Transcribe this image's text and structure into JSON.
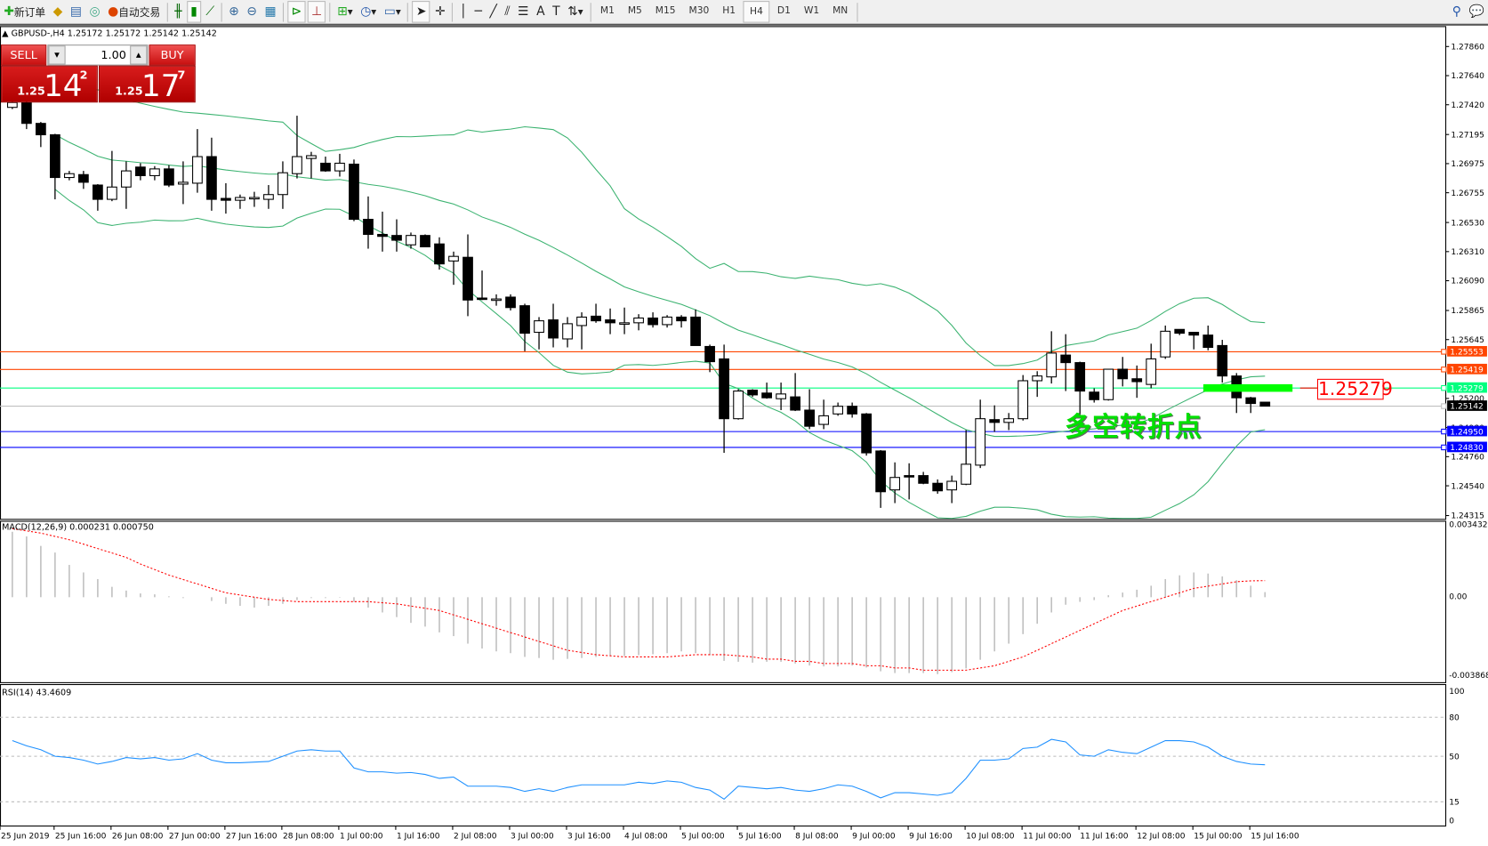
{
  "toolbar": {
    "new_order": "新订单",
    "auto_trading": "自动交易",
    "icons": [
      "new-order-icon",
      "market-watch-icon",
      "data-window-icon",
      "navigator-icon",
      "auto-trading-icon",
      "bar-chart-icon",
      "candlestick-icon",
      "line-chart-icon",
      "zoom-in-icon",
      "zoom-out-icon",
      "tile-windows-icon",
      "auto-scroll-icon",
      "chart-shift-icon",
      "indicators-icon",
      "periods-icon",
      "templates-icon",
      "cursor-icon",
      "crosshair-icon",
      "vertical-line-icon",
      "horizontal-line-icon",
      "trendline-icon",
      "channel-icon",
      "fibonacci-icon",
      "text-icon",
      "text-label-icon",
      "arrows-icon",
      "search-icon",
      "chat-icon"
    ],
    "timeframes": [
      "M1",
      "M5",
      "M15",
      "M30",
      "H1",
      "H4",
      "D1",
      "W1",
      "MN"
    ],
    "active_timeframe": "H4"
  },
  "chart": {
    "header": "▲ GBPUSD-,H4  1.25172 1.25172 1.25142 1.25142",
    "symbol": "GBPUSD-",
    "timeframe": "H4",
    "trade_panel": {
      "sell": "SELL",
      "buy": "BUY",
      "lot": "1.00",
      "bid_big": "1.25",
      "bid_pips": "14",
      "bid_frac": "2",
      "ask_big": "1.25",
      "ask_pips": "17",
      "ask_frac": "7"
    },
    "annotation_text": "多空转折点",
    "annotation_price_label": "1.25279",
    "colors": {
      "bull": "#ffffff",
      "bear": "#000000",
      "bands": "#3cb371",
      "macd_hist": "#c0c0c0",
      "macd_signal": "#ff0000",
      "rsi": "#1e90ff",
      "annotation": "#00e000",
      "rect": "#00ff00"
    }
  },
  "chart_data": {
    "type": "candlestick",
    "price_ticks": [
      "1.27860",
      "1.27640",
      "1.27420",
      "1.27195",
      "1.26975",
      "1.26755",
      "1.26530",
      "1.26310",
      "1.26090",
      "1.25865",
      "1.25645",
      "1.25200",
      "1.24980",
      "1.24760",
      "1.24540",
      "1.24315"
    ],
    "time_labels": [
      "25 Jun 2019",
      "25 Jun 16:00",
      "26 Jun 08:00",
      "27 Jun 00:00",
      "27 Jun 16:00",
      "28 Jun 08:00",
      "1 Jul 00:00",
      "1 Jul 16:00",
      "2 Jul 08:00",
      "3 Jul 00:00",
      "3 Jul 16:00",
      "4 Jul 08:00",
      "5 Jul 00:00",
      "5 Jul 16:00",
      "8 Jul 08:00",
      "9 Jul 00:00",
      "9 Jul 16:00",
      "10 Jul 08:00",
      "11 Jul 00:00",
      "11 Jul 16:00",
      "12 Jul 08:00",
      "15 Jul 00:00",
      "15 Jul 16:00"
    ],
    "ohlc": [
      [
        1.274,
        1.2745,
        1.27387,
        1.27437
      ],
      [
        1.27437,
        1.27494,
        1.27236,
        1.27279
      ],
      [
        1.27279,
        1.2729,
        1.271,
        1.27193
      ],
      [
        1.27193,
        1.272,
        1.26705,
        1.2687
      ],
      [
        1.2687,
        1.2692,
        1.26849,
        1.26899
      ],
      [
        1.26892,
        1.2692,
        1.26784,
        1.26834
      ],
      [
        1.26813,
        1.2682,
        1.26619,
        1.26705
      ],
      [
        1.26705,
        1.27071,
        1.26691,
        1.26798
      ],
      [
        1.26798,
        1.26992,
        1.26633,
        1.2692
      ],
      [
        1.26949,
        1.26978,
        1.26849,
        1.26884
      ],
      [
        1.26884,
        1.26956,
        1.26849,
        1.26935
      ],
      [
        1.26935,
        1.26963,
        1.26798,
        1.26813
      ],
      [
        1.2682,
        1.26992,
        1.26669,
        1.26834
      ],
      [
        1.26827,
        1.27236,
        1.26755,
        1.27028
      ],
      [
        1.27028,
        1.27171,
        1.26619,
        1.26705
      ],
      [
        1.26712,
        1.26827,
        1.26597,
        1.26698
      ],
      [
        1.26698,
        1.26741,
        1.26633,
        1.26719
      ],
      [
        1.26712,
        1.26762,
        1.26648,
        1.26719
      ],
      [
        1.26705,
        1.26813,
        1.26633,
        1.26741
      ],
      [
        1.26741,
        1.26992,
        1.26633,
        1.26906
      ],
      [
        1.26899,
        1.27337,
        1.26863,
        1.27028
      ],
      [
        1.27014,
        1.27064,
        1.26863,
        1.27035
      ],
      [
        1.26978,
        1.27028,
        1.26913,
        1.2692
      ],
      [
        1.2692,
        1.27049,
        1.26877,
        1.26978
      ],
      [
        1.26971,
        1.27006,
        1.2654,
        1.26554
      ],
      [
        1.26554,
        1.26727,
        1.26332,
        1.2644
      ],
      [
        1.2644,
        1.26612,
        1.2631,
        1.26425
      ],
      [
        1.26432,
        1.26554,
        1.2631,
        1.26396
      ],
      [
        1.26361,
        1.26454,
        1.26332,
        1.26432
      ],
      [
        1.26432,
        1.2644,
        1.26346,
        1.26346
      ],
      [
        1.26368,
        1.26418,
        1.26174,
        1.26217
      ],
      [
        1.26239,
        1.2631,
        1.26059,
        1.26274
      ],
      [
        1.26267,
        1.2644,
        1.25822,
        1.25944
      ],
      [
        1.25959,
        1.26167,
        1.25944,
        1.25952
      ],
      [
        1.25952,
        1.25987,
        1.25901,
        1.25952
      ],
      [
        1.25966,
        1.25987,
        1.25865,
        1.25887
      ],
      [
        1.25901,
        1.25916,
        1.25557,
        1.25693
      ],
      [
        1.257,
        1.25815,
        1.25571,
        1.25787
      ],
      [
        1.25794,
        1.25916,
        1.25586,
        1.25657
      ],
      [
        1.2565,
        1.25815,
        1.25586,
        1.25765
      ],
      [
        1.25751,
        1.25851,
        1.25571,
        1.25815
      ],
      [
        1.25822,
        1.25916,
        1.25772,
        1.25787
      ],
      [
        1.25794,
        1.2588,
        1.25686,
        1.25772
      ],
      [
        1.25772,
        1.25887,
        1.25686,
        1.25772
      ],
      [
        1.25772,
        1.25837,
        1.25715,
        1.25808
      ],
      [
        1.25808,
        1.25851,
        1.25736,
        1.25758
      ],
      [
        1.25758,
        1.2583,
        1.25736,
        1.25815
      ],
      [
        1.25815,
        1.2583,
        1.25736,
        1.25787
      ],
      [
        1.25815,
        1.25873,
        1.256,
        1.256
      ],
      [
        1.25593,
        1.25607,
        1.25399,
        1.25478
      ],
      [
        1.25499,
        1.25607,
        1.24789,
        1.25047
      ],
      [
        1.25047,
        1.2527,
        1.2504,
        1.25256
      ],
      [
        1.25263,
        1.2527,
        1.25212,
        1.25227
      ],
      [
        1.25241,
        1.2532,
        1.25198,
        1.25205
      ],
      [
        1.25198,
        1.2532,
        1.25112,
        1.25234
      ],
      [
        1.25212,
        1.25392,
        1.25105,
        1.25112
      ],
      [
        1.25112,
        1.2527,
        1.24968,
        1.2499
      ],
      [
        1.25004,
        1.25191,
        1.24968,
        1.25069
      ],
      [
        1.25083,
        1.25169,
        1.25069,
        1.25141
      ],
      [
        1.25141,
        1.25169,
        1.25055,
        1.25083
      ],
      [
        1.25083,
        1.2509,
        1.24768,
        1.24789
      ],
      [
        1.24803,
        1.2481,
        1.24373,
        1.24495
      ],
      [
        1.24509,
        1.24717,
        1.24409,
        1.24603
      ],
      [
        1.24617,
        1.2471,
        1.24437,
        1.2461
      ],
      [
        1.24617,
        1.24645,
        1.24552,
        1.24559
      ],
      [
        1.24559,
        1.24588,
        1.2448,
        1.24502
      ],
      [
        1.24509,
        1.24617,
        1.24409,
        1.24574
      ],
      [
        1.24552,
        1.24961,
        1.24545,
        1.24703
      ],
      [
        1.24696,
        1.25191,
        1.24674,
        1.25047
      ],
      [
        1.2504,
        1.25148,
        1.24947,
        1.25019
      ],
      [
        1.25019,
        1.2509,
        1.24961,
        1.25047
      ],
      [
        1.25047,
        1.25377,
        1.25033,
        1.25334
      ],
      [
        1.25334,
        1.25406,
        1.25212,
        1.2537
      ],
      [
        1.25363,
        1.25708,
        1.25313,
        1.25543
      ],
      [
        1.25528,
        1.25686,
        1.25256,
        1.25471
      ],
      [
        1.25471,
        1.25478,
        1.25055,
        1.25256
      ],
      [
        1.25248,
        1.25277,
        1.25169,
        1.25191
      ],
      [
        1.25191,
        1.25421,
        1.25184,
        1.25421
      ],
      [
        1.25421,
        1.25514,
        1.25291,
        1.25349
      ],
      [
        1.25349,
        1.25449,
        1.25205,
        1.25327
      ],
      [
        1.25306,
        1.25614,
        1.25277,
        1.25499
      ],
      [
        1.25514,
        1.25751,
        1.25499,
        1.25708
      ],
      [
        1.25722,
        1.25722,
        1.25679,
        1.25693
      ],
      [
        1.257,
        1.257,
        1.25571,
        1.25679
      ],
      [
        1.25679,
        1.25751,
        1.25564,
        1.25586
      ],
      [
        1.256,
        1.25643,
        1.2532,
        1.2537
      ],
      [
        1.2537,
        1.25392,
        1.2509,
        1.25205
      ],
      [
        1.25205,
        1.25212,
        1.2509,
        1.25162
      ],
      [
        1.25172,
        1.25172,
        1.25142,
        1.25142
      ]
    ],
    "bollinger": {
      "period": 20,
      "deviation": 2
    },
    "hlines": [
      {
        "price": "1.25553",
        "color": "#ff4500"
      },
      {
        "price": "1.25419",
        "color": "#ff4500"
      },
      {
        "price": "1.25279",
        "color": "#00ff7f"
      },
      {
        "price": "1.25142",
        "color": "#000000",
        "line": "#c0c0c0"
      },
      {
        "price": "1.24950",
        "color": "#0000ff"
      },
      {
        "price": "1.24830",
        "color": "#0000ff"
      }
    ],
    "rect_price": 1.25279,
    "macd": {
      "label": "MACD(12,26,9) 0.000231 0.000750",
      "ticks": [
        "0.003432",
        "0.00",
        "-0.003868"
      ],
      "range": [
        -0.003868,
        0.003432
      ],
      "hist": [
        0.00296,
        0.00275,
        0.00232,
        0.00202,
        0.00146,
        0.00112,
        0.00082,
        0.00047,
        0.0003,
        0.00017,
        0.00013,
        4e-05,
        -4e-05,
        0,
        -0.00017,
        -0.0003,
        -0.00039,
        -0.00047,
        -0.00039,
        -0.0003,
        -0.00013,
        -4e-05,
        -4e-05,
        -2e-05,
        -0.00021,
        -0.00047,
        -0.00069,
        -0.0009,
        -0.00116,
        -0.00133,
        -0.00159,
        -0.00176,
        -0.0021,
        -0.00232,
        -0.00245,
        -0.00253,
        -0.0027,
        -0.00275,
        -0.00283,
        -0.00279,
        -0.00275,
        -0.0027,
        -0.00266,
        -0.00266,
        -0.00262,
        -0.00258,
        -0.00253,
        -0.00245,
        -0.00253,
        -0.00262,
        -0.00288,
        -0.00292,
        -0.00296,
        -0.00292,
        -0.00292,
        -0.003,
        -0.00309,
        -0.00313,
        -0.00313,
        -0.00309,
        -0.00318,
        -0.00335,
        -0.00343,
        -0.00343,
        -0.00343,
        -0.00348,
        -0.00339,
        -0.00322,
        -0.00283,
        -0.00245,
        -0.0021,
        -0.00167,
        -0.0012,
        -0.00069,
        -0.00034,
        -0.00021,
        -0.00013,
        9e-05,
        0.00021,
        0.00034,
        0.00052,
        0.00082,
        0.00099,
        0.00112,
        0.00107,
        0.00094,
        0.00077,
        0.00052,
        0.000231
      ],
      "signal": [
        0.0031,
        0.003,
        0.0029,
        0.00275,
        0.0026,
        0.0024,
        0.0022,
        0.002,
        0.0018,
        0.0015,
        0.00125,
        0.001,
        0.0008,
        0.0006,
        0.0004,
        0.0002,
        0.0001,
        0,
        -0.0001,
        -0.00015,
        -0.0002,
        -0.0002,
        -0.0002,
        -0.0002,
        -0.0002,
        -0.0002,
        -0.00025,
        -0.0003,
        -0.0004,
        -0.0005,
        -0.0006,
        -0.0008,
        -0.001,
        -0.0012,
        -0.0014,
        -0.0016,
        -0.0018,
        -0.002,
        -0.0022,
        -0.0024,
        -0.0025,
        -0.0026,
        -0.00265,
        -0.0027,
        -0.0027,
        -0.0027,
        -0.0027,
        -0.00265,
        -0.0026,
        -0.0026,
        -0.0026,
        -0.00265,
        -0.0027,
        -0.0028,
        -0.0028,
        -0.0029,
        -0.0029,
        -0.003,
        -0.003,
        -0.003,
        -0.0031,
        -0.0031,
        -0.0032,
        -0.0032,
        -0.0033,
        -0.0033,
        -0.0033,
        -0.0033,
        -0.0032,
        -0.0031,
        -0.0029,
        -0.0027,
        -0.0024,
        -0.0021,
        -0.0018,
        -0.0015,
        -0.0012,
        -0.0009,
        -0.0006,
        -0.0004,
        -0.0002,
        0,
        0.0002,
        0.0004,
        0.0005,
        0.0006,
        0.0007,
        0.00074,
        0.00075
      ]
    },
    "rsi": {
      "label": "RSI(14) 43.4609",
      "ticks": [
        "100",
        "80",
        "50",
        "15",
        "0"
      ],
      "levels": [
        80,
        50,
        15
      ],
      "values": [
        62,
        58,
        55,
        50,
        49,
        47,
        44,
        46,
        49,
        48,
        49,
        47,
        48,
        52,
        47,
        45,
        45,
        45.5,
        46,
        50,
        54,
        55,
        54,
        54,
        41,
        38,
        38,
        37,
        37.5,
        36,
        33,
        34,
        27,
        27,
        27,
        26,
        23,
        25,
        23,
        26,
        28,
        28,
        28,
        28,
        30,
        29,
        31,
        30,
        26,
        24,
        17,
        27,
        26,
        25,
        26,
        24,
        23,
        25,
        28,
        27,
        23,
        18,
        22,
        22,
        21,
        20,
        22,
        33,
        47,
        47,
        48,
        56,
        57,
        63,
        61,
        51,
        50,
        55,
        53,
        52,
        57,
        62,
        62,
        61,
        57,
        50,
        46,
        44,
        43.4609
      ]
    }
  }
}
